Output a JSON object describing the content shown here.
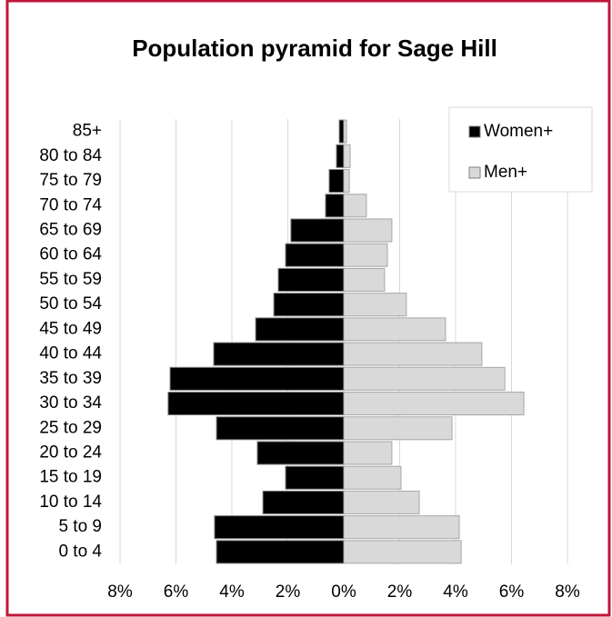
{
  "chart_data": {
    "type": "pyramid",
    "title": "Population pyramid for Sage Hill",
    "categories": [
      "85+",
      "80 to 84",
      "75 to 79",
      "70 to 74",
      "65 to 69",
      "60 to 64",
      "55 to 59",
      "50 to 54",
      "45 to 49",
      "40 to 44",
      "35 to 39",
      "30 to 34",
      "25 to 29",
      "20 to 24",
      "15 to 19",
      "10 to 14",
      "5 to 9",
      "0 to 4"
    ],
    "series": [
      {
        "name": "Women+",
        "color": "#000000",
        "values": [
          -0.16,
          -0.26,
          -0.52,
          -0.65,
          -1.89,
          -2.08,
          -2.34,
          -2.5,
          -3.15,
          -4.65,
          -6.21,
          -6.28,
          -4.55,
          -3.09,
          -2.08,
          -2.89,
          -4.62,
          -4.55
        ]
      },
      {
        "name": "Men+",
        "color": "#d9d9d9",
        "values": [
          0.1,
          0.23,
          0.2,
          0.81,
          1.72,
          1.56,
          1.46,
          2.24,
          3.64,
          4.94,
          5.76,
          6.44,
          3.87,
          1.72,
          2.05,
          2.7,
          4.13,
          4.2
        ]
      }
    ],
    "xlim": [
      -8,
      8
    ],
    "xticks": [
      {
        "value": -8,
        "label": "8%"
      },
      {
        "value": -6,
        "label": "6%"
      },
      {
        "value": -4,
        "label": "4%"
      },
      {
        "value": -2,
        "label": "2%"
      },
      {
        "value": 0,
        "label": "0%"
      },
      {
        "value": 2,
        "label": "2%"
      },
      {
        "value": 4,
        "label": "4%"
      },
      {
        "value": 6,
        "label": "6%"
      },
      {
        "value": 8,
        "label": "8%"
      }
    ],
    "grid": true,
    "legend": "top-right"
  }
}
